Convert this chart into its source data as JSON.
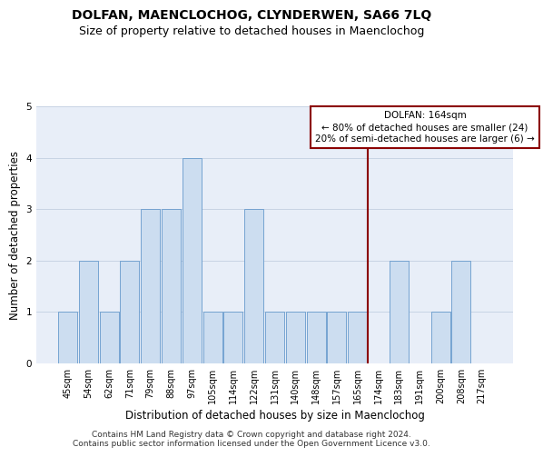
{
  "title": "DOLFAN, MAENCLOCHOG, CLYNDERWEN, SA66 7LQ",
  "subtitle": "Size of property relative to detached houses in Maenclochog",
  "xlabel": "Distribution of detached houses by size in Maenclochog",
  "ylabel": "Number of detached properties",
  "categories": [
    "45sqm",
    "54sqm",
    "62sqm",
    "71sqm",
    "79sqm",
    "88sqm",
    "97sqm",
    "105sqm",
    "114sqm",
    "122sqm",
    "131sqm",
    "140sqm",
    "148sqm",
    "157sqm",
    "165sqm",
    "174sqm",
    "183sqm",
    "191sqm",
    "200sqm",
    "208sqm",
    "217sqm"
  ],
  "bar_values": [
    1,
    2,
    1,
    2,
    3,
    3,
    4,
    1,
    1,
    3,
    1,
    1,
    1,
    1,
    1,
    0,
    2,
    0,
    1,
    2,
    0
  ],
  "bar_color": "#ccddf0",
  "bar_edge_color": "#6699cc",
  "grid_color": "#c8d4e4",
  "background_color": "#e8eef8",
  "annotation_text": "DOLFAN: 164sqm\n← 80% of detached houses are smaller (24)\n20% of semi-detached houses are larger (6) →",
  "vline_position": 14,
  "ylim": [
    0,
    5
  ],
  "yticks": [
    0,
    1,
    2,
    3,
    4,
    5
  ],
  "footer_line1": "Contains HM Land Registry data © Crown copyright and database right 2024.",
  "footer_line2": "Contains public sector information licensed under the Open Government Licence v3.0.",
  "title_fontsize": 10,
  "subtitle_fontsize": 9,
  "xlabel_fontsize": 8.5,
  "ylabel_fontsize": 8.5,
  "tick_fontsize": 7,
  "annotation_fontsize": 7.5,
  "footer_fontsize": 6.5
}
